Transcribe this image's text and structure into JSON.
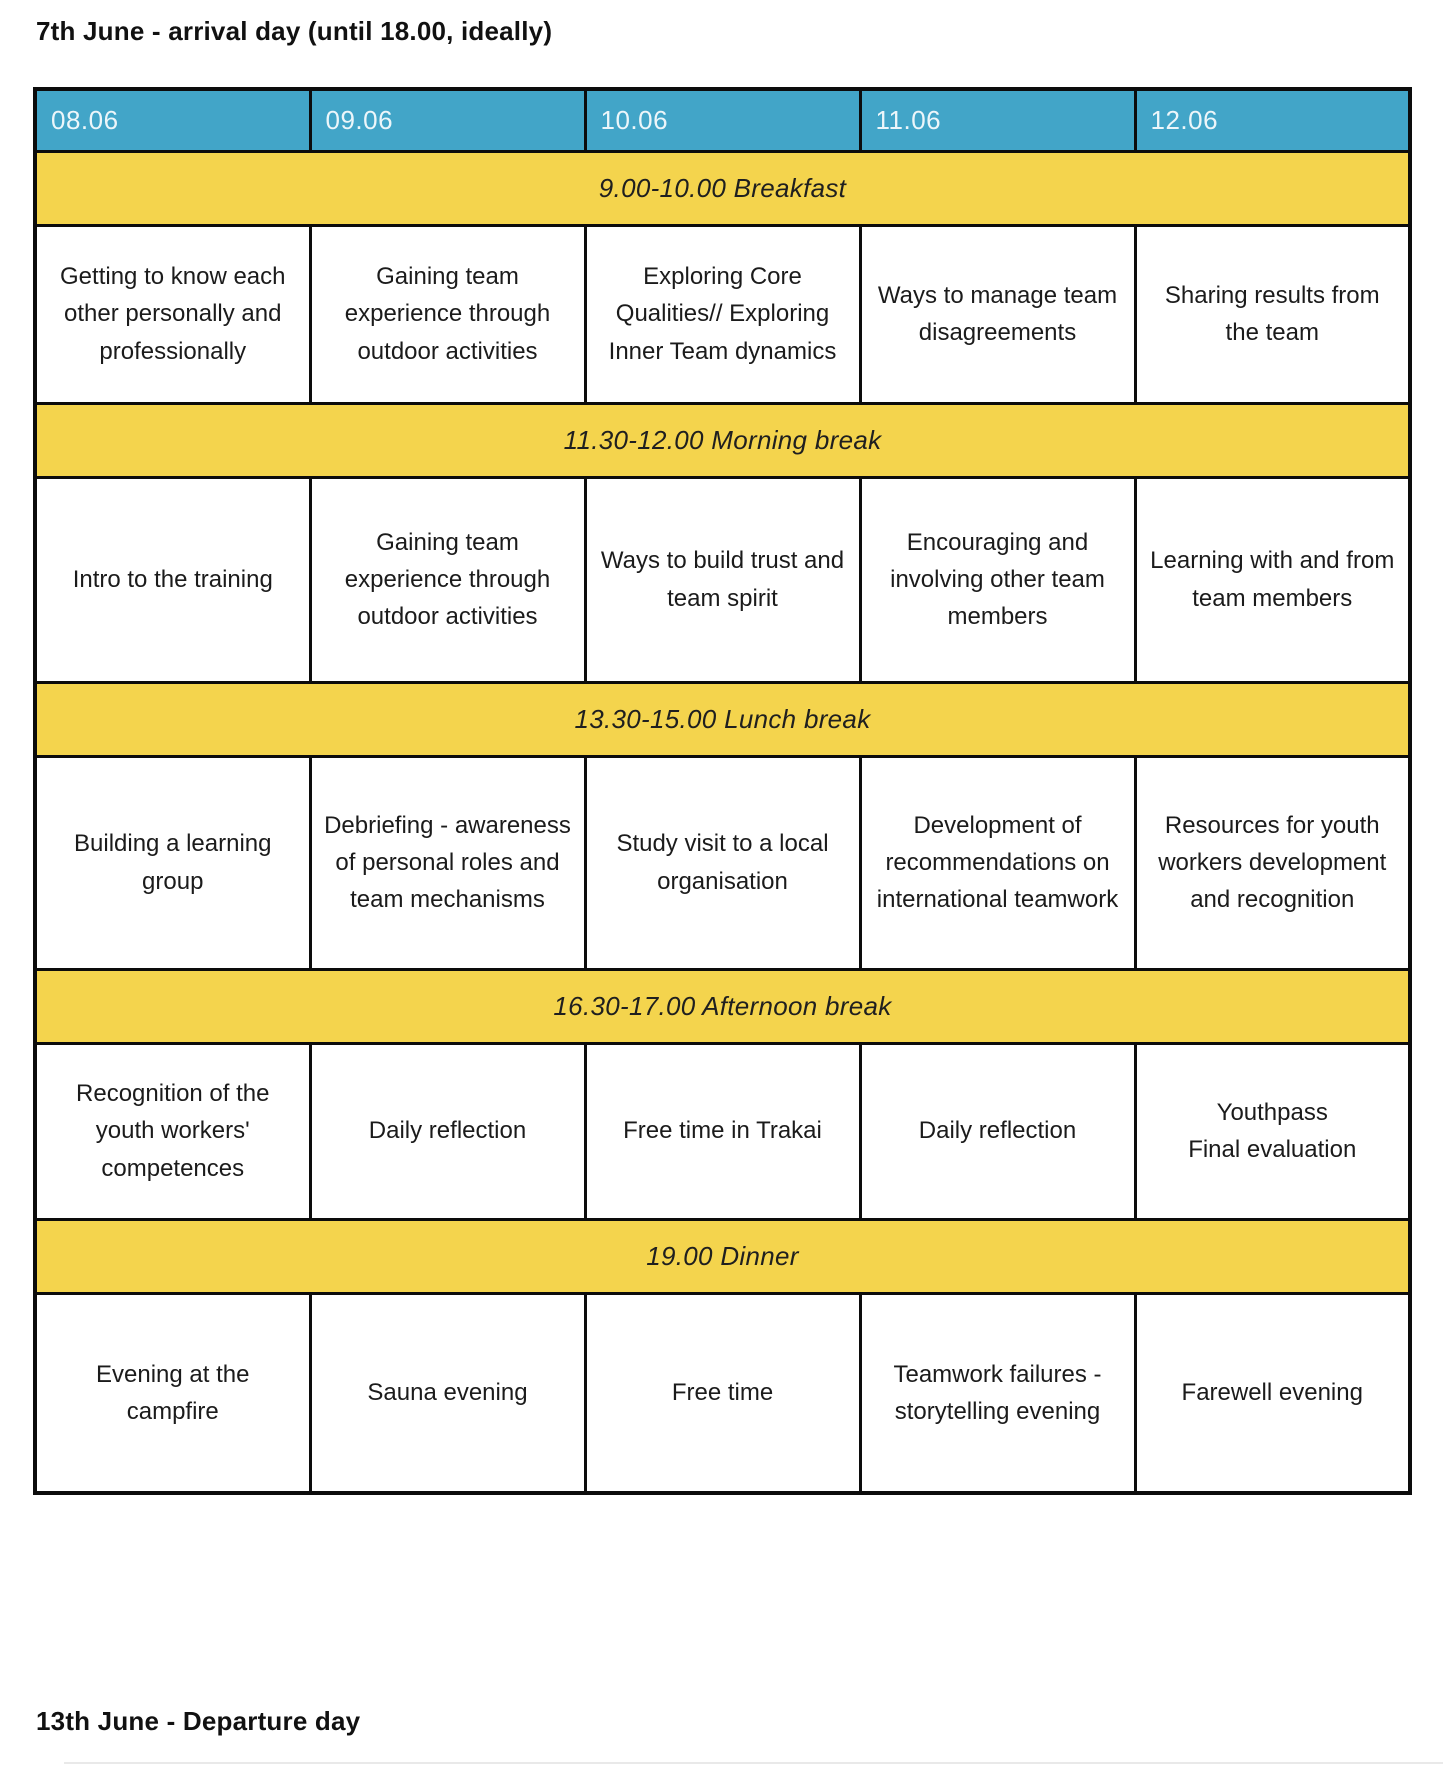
{
  "page": {
    "title_top": "7th June - arrival day (until 18.00, ideally)",
    "title_bottom": "13th June - Departure day"
  },
  "colors": {
    "header_bg": "#42a5c8",
    "header_text": "#ecf6fa",
    "break_bg": "#f4d44d",
    "border": "#0c0c0c",
    "cell_text": "#1b1b1b",
    "page_bg": "#ffffff"
  },
  "schedule": {
    "days": [
      "08.06",
      "09.06",
      "10.06",
      "11.06",
      "12.06"
    ],
    "rows": [
      {
        "type": "break",
        "label": "9.00-10.00 Breakfast"
      },
      {
        "type": "activities",
        "cells": [
          "Getting to know each other personally and professionally",
          "Gaining team experience through outdoor activities",
          "Exploring Core Qualities// Exploring Inner Team dynamics",
          "Ways to manage team disagreements",
          "Sharing results from the team"
        ]
      },
      {
        "type": "break",
        "label": "11.30-12.00 Morning break"
      },
      {
        "type": "activities",
        "cells": [
          "Intro to the training",
          "Gaining team experience through outdoor activities",
          "Ways to build trust and team spirit",
          "Encouraging and involving other team members",
          "Learning with and from team members"
        ]
      },
      {
        "type": "break",
        "label": "13.30-15.00 Lunch break"
      },
      {
        "type": "activities",
        "cells": [
          "Building a learning group",
          "Debriefing - awareness of personal roles and team mechanisms",
          "Study visit to a local organisation",
          "Development of recommendations on international teamwork",
          "Resources for youth workers development and recognition"
        ]
      },
      {
        "type": "break",
        "label": "16.30-17.00 Afternoon break"
      },
      {
        "type": "activities",
        "cells": [
          "Recognition of the youth workers' competences",
          "Daily reflection",
          "Free time in Trakai",
          "Daily reflection",
          "Youthpass\nFinal evaluation"
        ]
      },
      {
        "type": "break",
        "label": "19.00 Dinner"
      },
      {
        "type": "activities",
        "cells": [
          "Evening at the campfire",
          "Sauna evening",
          "Free time",
          "Teamwork failures - storytelling evening",
          "Farewell evening"
        ]
      }
    ]
  }
}
